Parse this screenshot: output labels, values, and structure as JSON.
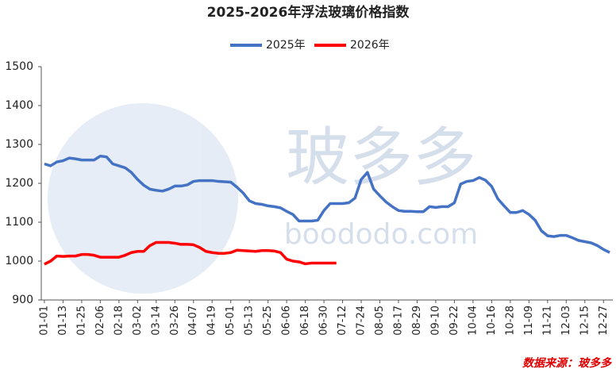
{
  "chart_data": {
    "type": "line",
    "title": "2025-2026年浮法玻璃价格指数",
    "categories": [
      "01-01",
      null,
      null,
      "01-13",
      null,
      null,
      "01-25",
      null,
      null,
      "02-06",
      null,
      null,
      "02-18",
      null,
      null,
      "03-02",
      null,
      null,
      "03-14",
      null,
      null,
      "03-26",
      null,
      null,
      "04-07",
      null,
      null,
      "04-19",
      null,
      null,
      "05-01",
      null,
      null,
      "05-13",
      null,
      null,
      "05-25",
      null,
      null,
      "06-06",
      null,
      null,
      "06-18",
      null,
      null,
      "06-30",
      null,
      null,
      "07-12",
      null,
      null,
      "07-24",
      null,
      null,
      "08-05",
      null,
      null,
      "08-17",
      null,
      null,
      "08-29",
      null,
      null,
      "09-10",
      null,
      null,
      "09-22",
      null,
      null,
      "10-04",
      null,
      null,
      "10-16",
      null,
      null,
      "10-28",
      null,
      null,
      "11-09",
      null,
      null,
      "11-21",
      null,
      null,
      "12-03",
      null,
      null,
      "12-15",
      null,
      null,
      "12-27",
      null
    ],
    "series": [
      {
        "name": "2025年",
        "color": "#4472c4",
        "values": [
          1250,
          1245,
          1255,
          1258,
          1265,
          1263,
          1260,
          1260,
          1260,
          1270,
          1268,
          1250,
          1245,
          1240,
          1228,
          1210,
          1195,
          1185,
          1182,
          1180,
          1185,
          1193,
          1193,
          1196,
          1205,
          1207,
          1207,
          1207,
          1205,
          1204,
          1203,
          1190,
          1175,
          1155,
          1148,
          1146,
          1142,
          1140,
          1137,
          1128,
          1120,
          1103,
          1103,
          1103,
          1105,
          1130,
          1148,
          1148,
          1148,
          1150,
          1162,
          1210,
          1228,
          1185,
          1168,
          1152,
          1140,
          1130,
          1128,
          1128,
          1127,
          1127,
          1140,
          1138,
          1140,
          1140,
          1150,
          1198,
          1205,
          1207,
          1215,
          1208,
          1192,
          1160,
          1142,
          1125,
          1125,
          1130,
          1120,
          1105,
          1078,
          1065,
          1063,
          1066,
          1066,
          1060,
          1053,
          1050,
          1047,
          1040,
          1030,
          1022
        ]
      },
      {
        "name": "2026年",
        "color": "#ff0000",
        "values": [
          992,
          1000,
          1013,
          1012,
          1013,
          1013,
          1017,
          1017,
          1015,
          1010,
          1010,
          1010,
          1010,
          1015,
          1022,
          1025,
          1025,
          1040,
          1048,
          1048,
          1048,
          1046,
          1043,
          1043,
          1042,
          1035,
          1025,
          1022,
          1020,
          1020,
          1022,
          1028,
          1027,
          1026,
          1025,
          1027,
          1027,
          1026,
          1022,
          1005,
          1000,
          998,
          993,
          995,
          995,
          995,
          995,
          995,
          null,
          null,
          null,
          null,
          null,
          null,
          null,
          null,
          null,
          null,
          null,
          null,
          null,
          null,
          null,
          null,
          null,
          null,
          null,
          null,
          null,
          null,
          null,
          null,
          null,
          null,
          null,
          null,
          null,
          null,
          null,
          null,
          null,
          null,
          null,
          null,
          null,
          null,
          null,
          null,
          null,
          null,
          null,
          null
        ]
      }
    ],
    "ylim": [
      900,
      1500
    ],
    "yticks": [
      900,
      1000,
      1100,
      1200,
      1300,
      1400,
      1500
    ],
    "grid": false,
    "legend": "top",
    "watermark": {
      "text": "玻多多",
      "url": "boododo.com"
    },
    "source": "数据来源：玻多多"
  }
}
